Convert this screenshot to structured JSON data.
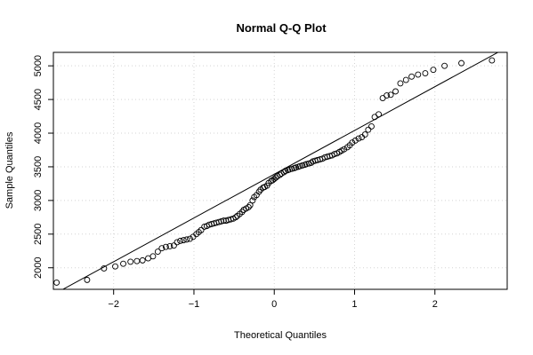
{
  "chart_data": {
    "type": "scatter",
    "title": "Normal Q-Q Plot",
    "xlabel": "Theoretical Quantiles",
    "ylabel": "Sample Quantiles",
    "xlim": [
      -2.75,
      2.9
    ],
    "ylim": [
      1680,
      5200
    ],
    "x_ticks": [
      -2,
      -1,
      0,
      1,
      2
    ],
    "y_ticks": [
      2000,
      2500,
      3000,
      3500,
      4000,
      4500,
      5000
    ],
    "grid": true,
    "reference_line": {
      "slope": 650,
      "intercept": 3390
    },
    "points": {
      "x": [
        -2.71,
        -2.33,
        -2.12,
        -1.98,
        -1.88,
        -1.79,
        -1.71,
        -1.64,
        -1.57,
        -1.51,
        -1.45,
        -1.4,
        -1.35,
        -1.3,
        -1.25,
        -1.21,
        -1.17,
        -1.13,
        -1.09,
        -1.05,
        -1.01,
        -0.97,
        -0.94,
        -0.91,
        -0.87,
        -0.84,
        -0.81,
        -0.78,
        -0.75,
        -0.72,
        -0.69,
        -0.66,
        -0.63,
        -0.6,
        -0.57,
        -0.54,
        -0.51,
        -0.48,
        -0.46,
        -0.43,
        -0.4,
        -0.38,
        -0.35,
        -0.32,
        -0.3,
        -0.27,
        -0.25,
        -0.22,
        -0.19,
        -0.17,
        -0.14,
        -0.12,
        -0.09,
        -0.07,
        -0.04,
        -0.02,
        0.0,
        0.02,
        0.04,
        0.07,
        0.09,
        0.12,
        0.14,
        0.17,
        0.19,
        0.22,
        0.25,
        0.27,
        0.3,
        0.32,
        0.35,
        0.38,
        0.4,
        0.43,
        0.46,
        0.48,
        0.51,
        0.54,
        0.57,
        0.6,
        0.63,
        0.66,
        0.69,
        0.72,
        0.75,
        0.78,
        0.81,
        0.84,
        0.87,
        0.91,
        0.94,
        0.97,
        1.01,
        1.05,
        1.09,
        1.13,
        1.17,
        1.21,
        1.25,
        1.3,
        1.35,
        1.4,
        1.45,
        1.51,
        1.57,
        1.64,
        1.71,
        1.79,
        1.88,
        1.98,
        2.12,
        2.33,
        2.71
      ],
      "y": [
        1780,
        1820,
        1990,
        2020,
        2060,
        2090,
        2100,
        2110,
        2140,
        2170,
        2240,
        2290,
        2310,
        2320,
        2330,
        2380,
        2400,
        2410,
        2420,
        2430,
        2460,
        2500,
        2530,
        2560,
        2610,
        2620,
        2640,
        2650,
        2660,
        2670,
        2680,
        2690,
        2700,
        2700,
        2710,
        2720,
        2730,
        2750,
        2770,
        2800,
        2830,
        2860,
        2880,
        2900,
        2930,
        3000,
        3050,
        3080,
        3130,
        3160,
        3190,
        3200,
        3220,
        3260,
        3290,
        3300,
        3320,
        3340,
        3360,
        3380,
        3400,
        3420,
        3440,
        3450,
        3460,
        3470,
        3480,
        3490,
        3500,
        3510,
        3520,
        3530,
        3540,
        3550,
        3560,
        3580,
        3590,
        3600,
        3610,
        3620,
        3640,
        3650,
        3660,
        3670,
        3690,
        3700,
        3720,
        3740,
        3760,
        3790,
        3820,
        3860,
        3890,
        3920,
        3940,
        3980,
        4050,
        4100,
        4240,
        4280,
        4520,
        4560,
        4570,
        4620,
        4740,
        4790,
        4840,
        4870,
        4890,
        4940,
        5000,
        5040,
        5080
      ]
    }
  }
}
